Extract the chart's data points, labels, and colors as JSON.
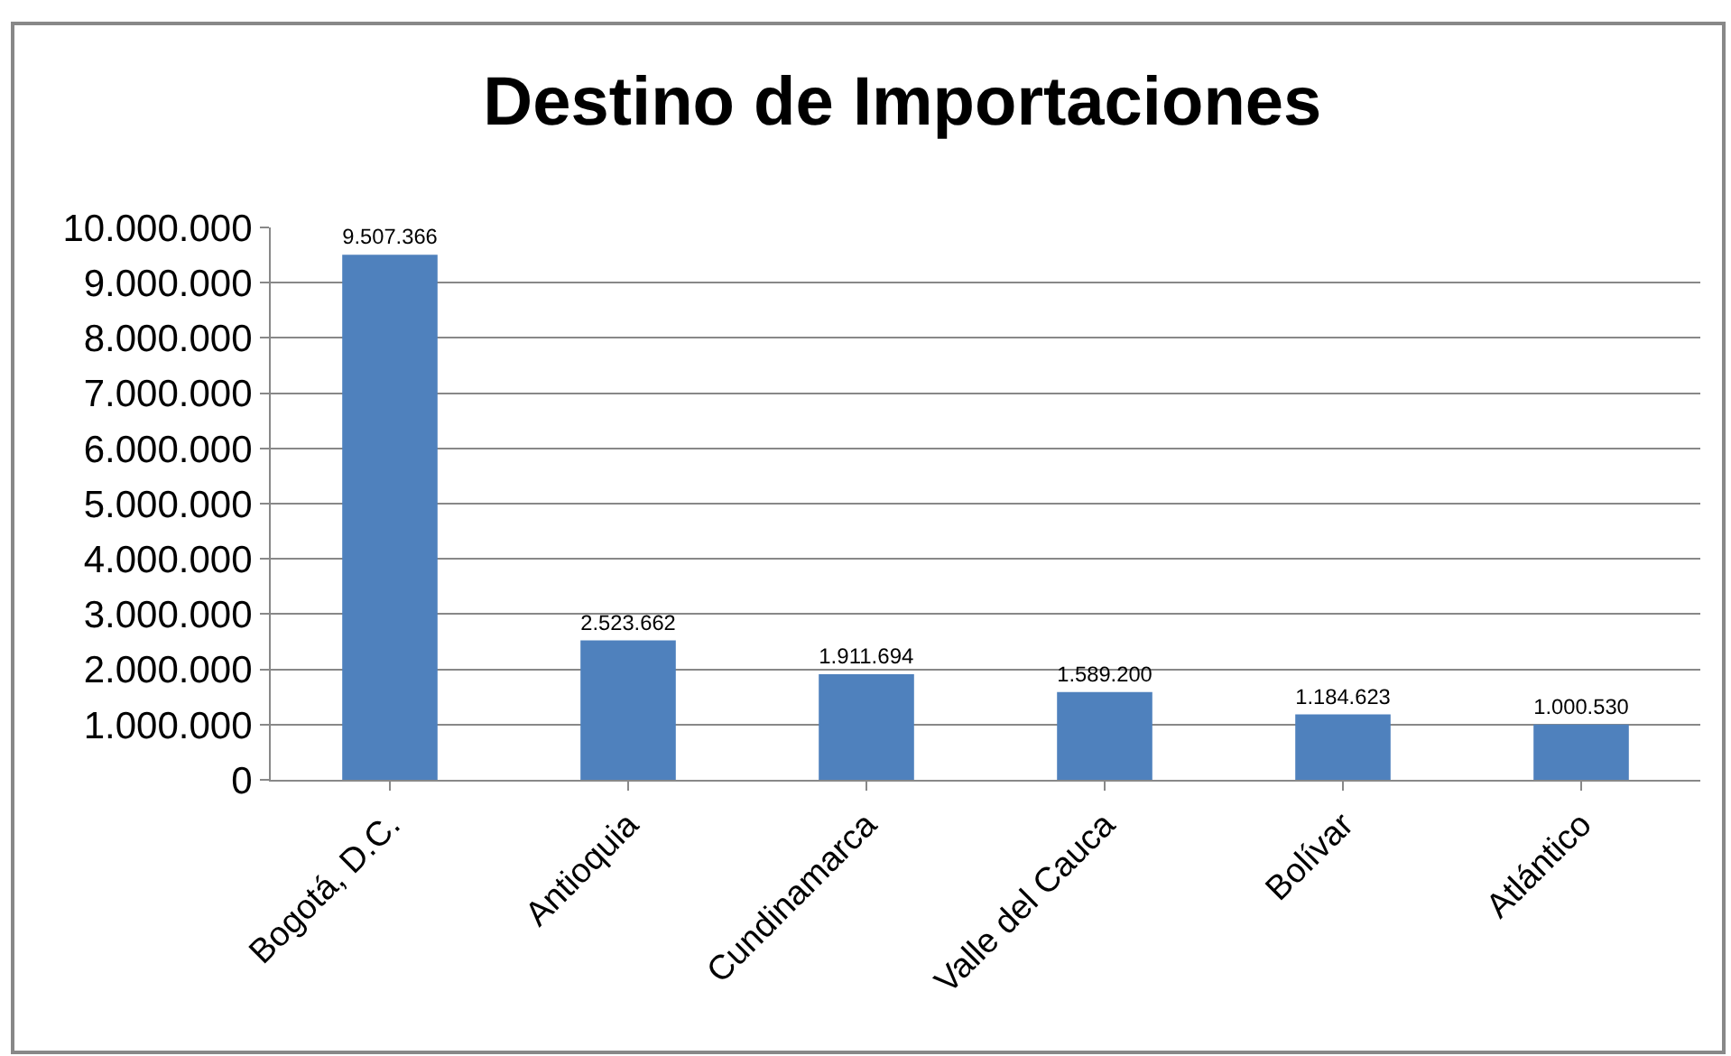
{
  "chart_data": {
    "type": "bar",
    "title": "Destino de Importaciones",
    "categories": [
      "Bogotá, D.C.",
      "Antioquia",
      "Cundinamarca",
      "Valle del Cauca",
      "Bolívar",
      "Atlántico"
    ],
    "values": [
      9507366,
      2523662,
      1911694,
      1589200,
      1184623,
      1000530
    ],
    "value_labels": [
      "9.507.366",
      "2.523.662",
      "1.911.694",
      "1.589.200",
      "1.184.623",
      "1.000.530"
    ],
    "color": "#4f81bd",
    "ylim": [
      0,
      10000000
    ],
    "yticks": [
      0,
      {
        "value": 1000000,
        "label": "1.000.000"
      },
      {
        "value": 2000000,
        "label": "2.000.000"
      },
      {
        "value": 3000000,
        "label": "3.000.000"
      },
      {
        "value": 4000000,
        "label": "4.000.000"
      },
      {
        "value": 5000000,
        "label": "5.000.000"
      },
      {
        "value": 6000000,
        "label": "6.000.000"
      },
      {
        "value": 7000000,
        "label": "7.000.000"
      },
      {
        "value": 8000000,
        "label": "8.000.000"
      },
      {
        "value": 9000000,
        "label": "9.000.000"
      },
      {
        "value": 10000000,
        "label": "10.000.000"
      }
    ],
    "grid": "y",
    "legend": false
  }
}
